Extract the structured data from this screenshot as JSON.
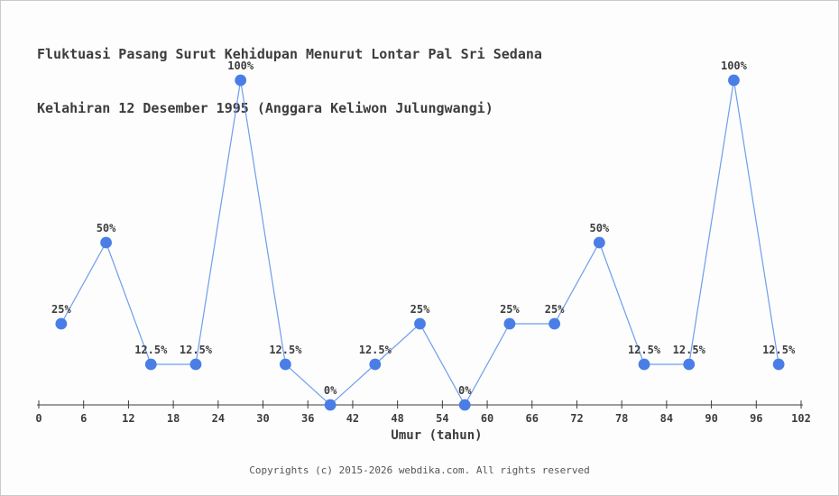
{
  "chart_data": {
    "type": "line",
    "title_lines": [
      "Fluktuasi Pasang Surut Kehidupan Menurut Lontar Pal Sri Sedana",
      "Kelahiran 12 Desember 1995 (Anggara Keliwon Julungwangi)"
    ],
    "xlabel": "Umur (tahun)",
    "ylabel": "",
    "x": [
      3,
      9,
      15,
      21,
      27,
      33,
      39,
      45,
      51,
      57,
      63,
      69,
      75,
      81,
      87,
      93,
      99
    ],
    "values": [
      25,
      50,
      12.5,
      12.5,
      100,
      12.5,
      0,
      12.5,
      25,
      0,
      25,
      25,
      50,
      12.5,
      12.5,
      100,
      12.5
    ],
    "point_labels": [
      "25%",
      "50%",
      "12.5%",
      "12.5%",
      "100%",
      "12.5%",
      "0%",
      "12.5%",
      "25%",
      "0%",
      "25%",
      "25%",
      "50%",
      "12.5%",
      "12.5%",
      "100%",
      "12.5%"
    ],
    "x_ticks": [
      0,
      6,
      12,
      18,
      24,
      30,
      36,
      42,
      48,
      54,
      60,
      66,
      72,
      78,
      84,
      90,
      96,
      102
    ],
    "xlim": [
      0,
      102
    ],
    "ylim": [
      0,
      100
    ],
    "grid": false,
    "legend": "none",
    "colors": {
      "line": "#6d9eeb",
      "marker": "#4a7ee6",
      "axis": "#3d3d3d",
      "text": "#3d3d3d",
      "footer_text": "#555555"
    }
  },
  "footer": {
    "copyright": "Copyrights (c) 2015-2026 webdika.com. All rights reserved"
  }
}
